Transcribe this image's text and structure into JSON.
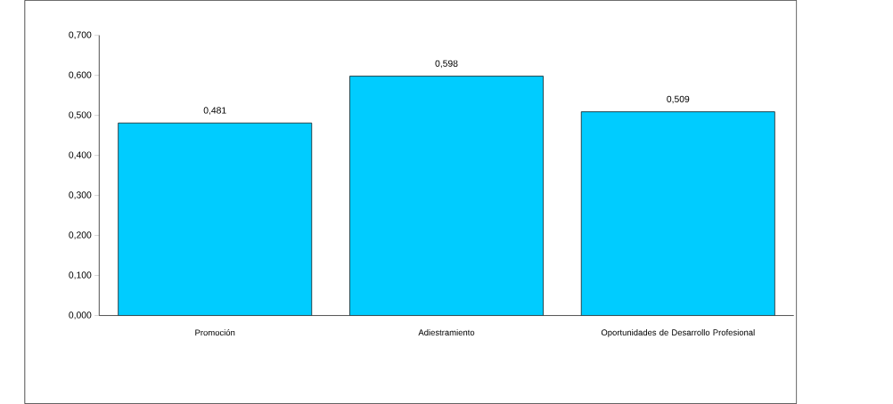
{
  "chart_data": {
    "type": "bar",
    "categories": [
      "Promoción",
      "Adiestramiento",
      "Oportunidades de Desarrollo Profesional"
    ],
    "values": [
      0.481,
      0.598,
      0.509
    ],
    "value_labels": [
      "0,481",
      "0,598",
      "0,509"
    ],
    "color": "#00ccff",
    "ylim": [
      0,
      0.7
    ],
    "yticks": [
      {
        "value": 0,
        "label": "0,000"
      },
      {
        "value": 0.1,
        "label": "0,100"
      },
      {
        "value": 0.2,
        "label": "0,200"
      },
      {
        "value": 0.3,
        "label": "0,300"
      },
      {
        "value": 0.4,
        "label": "0,400"
      },
      {
        "value": 0.5,
        "label": "0,500"
      },
      {
        "value": 0.6,
        "label": "0,600"
      },
      {
        "value": 0.7,
        "label": "0,700"
      }
    ],
    "grid": false
  }
}
